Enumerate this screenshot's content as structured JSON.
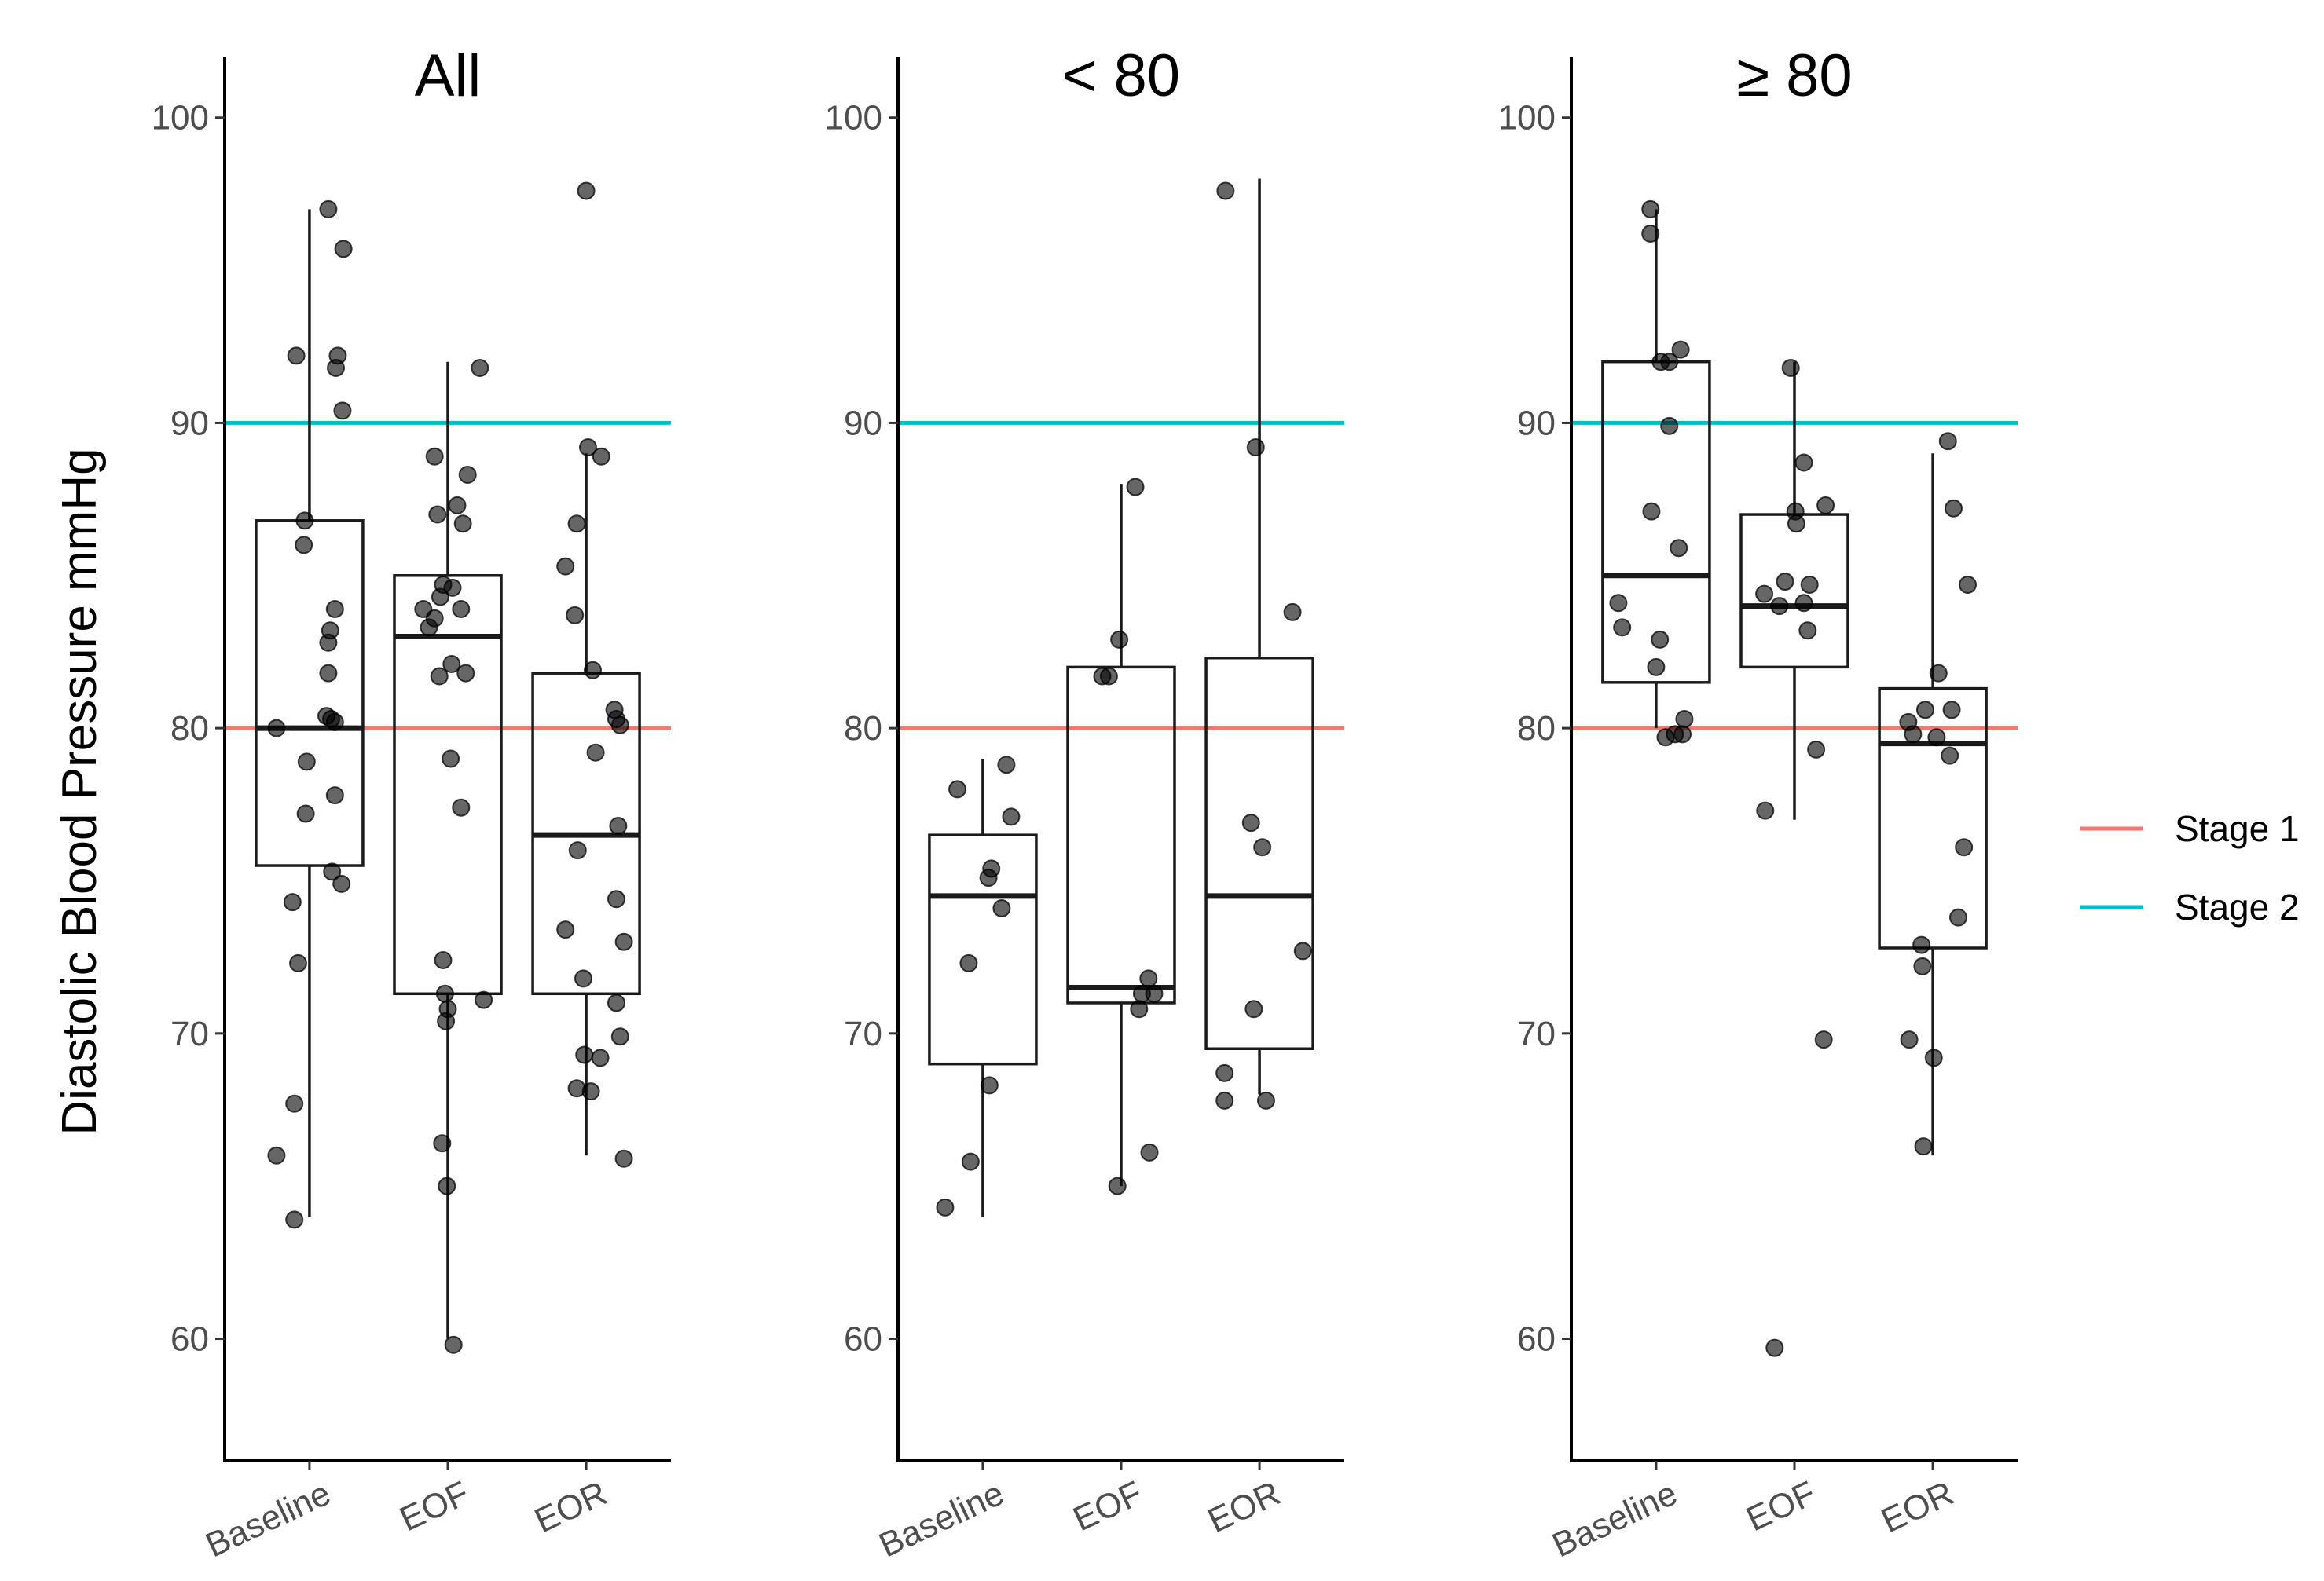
{
  "chart_data": {
    "type": "box",
    "ylabel": "Diastolic Blood Pressure mmHg",
    "ylim": [
      56,
      102
    ],
    "yticks": [
      60,
      70,
      80,
      90,
      100
    ],
    "categories": [
      "Baseline",
      "EOF",
      "EOR"
    ],
    "reference_lines": [
      {
        "name": "Stage 1",
        "value": 80,
        "color": "#f8766d"
      },
      {
        "name": "Stage 2",
        "value": 90,
        "color": "#00bfc4"
      }
    ],
    "legend": {
      "position": "right",
      "items": [
        "Stage 1",
        "Stage 2"
      ]
    },
    "panels": [
      {
        "title": "All",
        "boxes": [
          {
            "category": "Baseline",
            "min": 64,
            "q1": 75.5,
            "median": 80,
            "q3": 86.8,
            "max": 97
          },
          {
            "category": "EOF",
            "min": 60,
            "q1": 71.3,
            "median": 83,
            "q3": 85,
            "max": 92
          },
          {
            "category": "EOR",
            "min": 66,
            "q1": 71.3,
            "median": 76.5,
            "q3": 81.8,
            "max": 89
          }
        ],
        "points": [
          {
            "category": "Baseline",
            "jitter": -0.35,
            "y": 80
          },
          {
            "category": "Baseline",
            "jitter": -0.35,
            "y": 66
          },
          {
            "category": "Baseline",
            "jitter": -0.18,
            "y": 74.3
          },
          {
            "category": "Baseline",
            "jitter": -0.14,
            "y": 92.2
          },
          {
            "category": "Baseline",
            "jitter": -0.12,
            "y": 72.3
          },
          {
            "category": "Baseline",
            "jitter": -0.16,
            "y": 67.7
          },
          {
            "category": "Baseline",
            "jitter": -0.16,
            "y": 63.9
          },
          {
            "category": "Baseline",
            "jitter": -0.05,
            "y": 86.8
          },
          {
            "category": "Baseline",
            "jitter": -0.06,
            "y": 86
          },
          {
            "category": "Baseline",
            "jitter": -0.03,
            "y": 78.9
          },
          {
            "category": "Baseline",
            "jitter": -0.04,
            "y": 77.2
          },
          {
            "category": "Baseline",
            "jitter": 0.2,
            "y": 97
          },
          {
            "category": "Baseline",
            "jitter": 0.2,
            "y": 82.8
          },
          {
            "category": "Baseline",
            "jitter": 0.22,
            "y": 83.2
          },
          {
            "category": "Baseline",
            "jitter": 0.27,
            "y": 83.9
          },
          {
            "category": "Baseline",
            "jitter": 0.2,
            "y": 81.8
          },
          {
            "category": "Baseline",
            "jitter": 0.18,
            "y": 80.4
          },
          {
            "category": "Baseline",
            "jitter": 0.23,
            "y": 80.3
          },
          {
            "category": "Baseline",
            "jitter": 0.27,
            "y": 80.2
          },
          {
            "category": "Baseline",
            "jitter": 0.27,
            "y": 77.8
          },
          {
            "category": "Baseline",
            "jitter": 0.24,
            "y": 75.3
          },
          {
            "category": "Baseline",
            "jitter": 0.34,
            "y": 74.9
          },
          {
            "category": "Baseline",
            "jitter": 0.28,
            "y": 91.8
          },
          {
            "category": "Baseline",
            "jitter": 0.3,
            "y": 92.2
          },
          {
            "category": "Baseline",
            "jitter": 0.35,
            "y": 90.4
          },
          {
            "category": "Baseline",
            "jitter": 0.36,
            "y": 95.7
          },
          {
            "category": "EOF",
            "jitter": -0.14,
            "y": 88.9
          },
          {
            "category": "EOF",
            "jitter": -0.11,
            "y": 87
          },
          {
            "category": "EOF",
            "jitter": -0.26,
            "y": 83.9
          },
          {
            "category": "EOF",
            "jitter": -0.2,
            "y": 83.3
          },
          {
            "category": "EOF",
            "jitter": -0.14,
            "y": 83.6
          },
          {
            "category": "EOF",
            "jitter": -0.08,
            "y": 84.3
          },
          {
            "category": "EOF",
            "jitter": -0.05,
            "y": 84.7
          },
          {
            "category": "EOF",
            "jitter": -0.09,
            "y": 81.7
          },
          {
            "category": "EOF",
            "jitter": 0.04,
            "y": 82.1
          },
          {
            "category": "EOF",
            "jitter": 0.05,
            "y": 84.6
          },
          {
            "category": "EOF",
            "jitter": 0.14,
            "y": 83.9
          },
          {
            "category": "EOF",
            "jitter": 0.1,
            "y": 87.3
          },
          {
            "category": "EOF",
            "jitter": 0.16,
            "y": 86.7
          },
          {
            "category": "EOF",
            "jitter": 0.21,
            "y": 88.3
          },
          {
            "category": "EOF",
            "jitter": 0.34,
            "y": 91.8
          },
          {
            "category": "EOF",
            "jitter": 0.19,
            "y": 81.8
          },
          {
            "category": "EOF",
            "jitter": 0.03,
            "y": 79
          },
          {
            "category": "EOF",
            "jitter": 0.14,
            "y": 77.4
          },
          {
            "category": "EOF",
            "jitter": -0.05,
            "y": 72.4
          },
          {
            "category": "EOF",
            "jitter": -0.03,
            "y": 71.3
          },
          {
            "category": "EOF",
            "jitter": 0.0,
            "y": 70.8
          },
          {
            "category": "EOF",
            "jitter": -0.02,
            "y": 70.4
          },
          {
            "category": "EOF",
            "jitter": -0.06,
            "y": 66.4
          },
          {
            "category": "EOF",
            "jitter": -0.01,
            "y": 65
          },
          {
            "category": "EOF",
            "jitter": 0.06,
            "y": 59.8
          },
          {
            "category": "EOF",
            "jitter": 0.38,
            "y": 71.1
          },
          {
            "category": "EOR",
            "jitter": 0.0,
            "y": 97.6
          },
          {
            "category": "EOR",
            "jitter": -0.1,
            "y": 86.7
          },
          {
            "category": "EOR",
            "jitter": 0.02,
            "y": 89.2
          },
          {
            "category": "EOR",
            "jitter": 0.16,
            "y": 88.9
          },
          {
            "category": "EOR",
            "jitter": -0.22,
            "y": 85.3
          },
          {
            "category": "EOR",
            "jitter": -0.12,
            "y": 83.7
          },
          {
            "category": "EOR",
            "jitter": 0.07,
            "y": 81.9
          },
          {
            "category": "EOR",
            "jitter": 0.1,
            "y": 79.2
          },
          {
            "category": "EOR",
            "jitter": -0.09,
            "y": 76
          },
          {
            "category": "EOR",
            "jitter": 0.3,
            "y": 80.6
          },
          {
            "category": "EOR",
            "jitter": 0.32,
            "y": 80.3
          },
          {
            "category": "EOR",
            "jitter": 0.36,
            "y": 80.1
          },
          {
            "category": "EOR",
            "jitter": 0.34,
            "y": 76.8
          },
          {
            "category": "EOR",
            "jitter": 0.32,
            "y": 74.4
          },
          {
            "category": "EOR",
            "jitter": 0.4,
            "y": 73
          },
          {
            "category": "EOR",
            "jitter": -0.22,
            "y": 73.4
          },
          {
            "category": "EOR",
            "jitter": -0.03,
            "y": 71.8
          },
          {
            "category": "EOR",
            "jitter": 0.32,
            "y": 71
          },
          {
            "category": "EOR",
            "jitter": 0.36,
            "y": 69.9
          },
          {
            "category": "EOR",
            "jitter": -0.02,
            "y": 69.3
          },
          {
            "category": "EOR",
            "jitter": 0.15,
            "y": 69.2
          },
          {
            "category": "EOR",
            "jitter": -0.1,
            "y": 68.2
          },
          {
            "category": "EOR",
            "jitter": 0.05,
            "y": 68.1
          },
          {
            "category": "EOR",
            "jitter": 0.4,
            "y": 65.9
          }
        ]
      },
      {
        "title": "< 80",
        "boxes": [
          {
            "category": "Baseline",
            "min": 64,
            "q1": 69,
            "median": 74.5,
            "q3": 76.5,
            "max": 79
          },
          {
            "category": "EOF",
            "min": 65,
            "q1": 71,
            "median": 71.5,
            "q3": 82,
            "max": 88
          },
          {
            "category": "EOR",
            "min": 68,
            "q1": 69.5,
            "median": 74.5,
            "q3": 82.3,
            "max": 98
          }
        ],
        "points": [
          {
            "category": "Baseline",
            "jitter": -0.4,
            "y": 64.3
          },
          {
            "category": "Baseline",
            "jitter": -0.27,
            "y": 78
          },
          {
            "category": "Baseline",
            "jitter": -0.15,
            "y": 72.3
          },
          {
            "category": "Baseline",
            "jitter": -0.13,
            "y": 65.8
          },
          {
            "category": "Baseline",
            "jitter": 0.06,
            "y": 75.1
          },
          {
            "category": "Baseline",
            "jitter": 0.09,
            "y": 75.4
          },
          {
            "category": "Baseline",
            "jitter": 0.07,
            "y": 68.3
          },
          {
            "category": "Baseline",
            "jitter": 0.2,
            "y": 74.1
          },
          {
            "category": "Baseline",
            "jitter": 0.25,
            "y": 78.8
          },
          {
            "category": "Baseline",
            "jitter": 0.3,
            "y": 77.1
          },
          {
            "category": "EOF",
            "jitter": -0.2,
            "y": 81.7
          },
          {
            "category": "EOF",
            "jitter": -0.13,
            "y": 81.7
          },
          {
            "category": "EOF",
            "jitter": -0.02,
            "y": 82.9
          },
          {
            "category": "EOF",
            "jitter": 0.15,
            "y": 87.9
          },
          {
            "category": "EOF",
            "jitter": 0.22,
            "y": 71.3
          },
          {
            "category": "EOF",
            "jitter": 0.29,
            "y": 71.8
          },
          {
            "category": "EOF",
            "jitter": 0.35,
            "y": 71.3
          },
          {
            "category": "EOF",
            "jitter": 0.19,
            "y": 70.8
          },
          {
            "category": "EOF",
            "jitter": -0.04,
            "y": 65
          },
          {
            "category": "EOF",
            "jitter": 0.3,
            "y": 66.1
          },
          {
            "category": "EOR",
            "jitter": -0.36,
            "y": 97.6
          },
          {
            "category": "EOR",
            "jitter": -0.04,
            "y": 89.2
          },
          {
            "category": "EOR",
            "jitter": 0.35,
            "y": 83.8
          },
          {
            "category": "EOR",
            "jitter": -0.09,
            "y": 76.9
          },
          {
            "category": "EOR",
            "jitter": 0.03,
            "y": 76.1
          },
          {
            "category": "EOR",
            "jitter": 0.46,
            "y": 72.7
          },
          {
            "category": "EOR",
            "jitter": -0.06,
            "y": 70.8
          },
          {
            "category": "EOR",
            "jitter": -0.37,
            "y": 68.7
          },
          {
            "category": "EOR",
            "jitter": -0.37,
            "y": 67.8
          },
          {
            "category": "EOR",
            "jitter": 0.07,
            "y": 67.8
          }
        ]
      },
      {
        "title": "≥ 80",
        "boxes": [
          {
            "category": "Baseline",
            "min": 80,
            "q1": 81.5,
            "median": 85,
            "q3": 92,
            "max": 97
          },
          {
            "category": "EOF",
            "min": 77,
            "q1": 82,
            "median": 84,
            "q3": 87,
            "max": 92
          },
          {
            "category": "EOR",
            "min": 66,
            "q1": 72.8,
            "median": 79.5,
            "q3": 81.3,
            "max": 89
          }
        ],
        "points": [
          {
            "category": "Baseline",
            "jitter": -0.06,
            "y": 97
          },
          {
            "category": "Baseline",
            "jitter": -0.06,
            "y": 96.2
          },
          {
            "category": "Baseline",
            "jitter": 0.05,
            "y": 92
          },
          {
            "category": "Baseline",
            "jitter": 0.14,
            "y": 92
          },
          {
            "category": "Baseline",
            "jitter": 0.26,
            "y": 92.4
          },
          {
            "category": "Baseline",
            "jitter": 0.14,
            "y": 89.9
          },
          {
            "category": "Baseline",
            "jitter": -0.05,
            "y": 87.1
          },
          {
            "category": "Baseline",
            "jitter": 0.24,
            "y": 85.9
          },
          {
            "category": "Baseline",
            "jitter": -0.4,
            "y": 84.1
          },
          {
            "category": "Baseline",
            "jitter": -0.36,
            "y": 83.3
          },
          {
            "category": "Baseline",
            "jitter": 0.04,
            "y": 82.9
          },
          {
            "category": "Baseline",
            "jitter": 0.0,
            "y": 82
          },
          {
            "category": "Baseline",
            "jitter": 0.1,
            "y": 79.7
          },
          {
            "category": "Baseline",
            "jitter": 0.2,
            "y": 79.8
          },
          {
            "category": "Baseline",
            "jitter": 0.28,
            "y": 79.8
          },
          {
            "category": "Baseline",
            "jitter": 0.3,
            "y": 80.3
          },
          {
            "category": "EOF",
            "jitter": -0.32,
            "y": 84.4
          },
          {
            "category": "EOF",
            "jitter": -0.1,
            "y": 84.8
          },
          {
            "category": "EOF",
            "jitter": -0.16,
            "y": 84
          },
          {
            "category": "EOF",
            "jitter": 0.01,
            "y": 87.1
          },
          {
            "category": "EOF",
            "jitter": 0.02,
            "y": 86.7
          },
          {
            "category": "EOF",
            "jitter": 0.1,
            "y": 88.7
          },
          {
            "category": "EOF",
            "jitter": 0.1,
            "y": 84.1
          },
          {
            "category": "EOF",
            "jitter": 0.16,
            "y": 84.7
          },
          {
            "category": "EOF",
            "jitter": 0.14,
            "y": 83.2
          },
          {
            "category": "EOF",
            "jitter": 0.33,
            "y": 87.3
          },
          {
            "category": "EOF",
            "jitter": -0.04,
            "y": 91.8
          },
          {
            "category": "EOF",
            "jitter": -0.31,
            "y": 77.3
          },
          {
            "category": "EOF",
            "jitter": 0.23,
            "y": 79.3
          },
          {
            "category": "EOF",
            "jitter": 0.31,
            "y": 69.8
          },
          {
            "category": "EOF",
            "jitter": -0.21,
            "y": 59.7
          },
          {
            "category": "EOR",
            "jitter": -0.26,
            "y": 80.2
          },
          {
            "category": "EOR",
            "jitter": -0.21,
            "y": 79.8
          },
          {
            "category": "EOR",
            "jitter": -0.08,
            "y": 80.6
          },
          {
            "category": "EOR",
            "jitter": 0.06,
            "y": 81.8
          },
          {
            "category": "EOR",
            "jitter": 0.04,
            "y": 79.7
          },
          {
            "category": "EOR",
            "jitter": 0.18,
            "y": 79.1
          },
          {
            "category": "EOR",
            "jitter": 0.2,
            "y": 80.6
          },
          {
            "category": "EOR",
            "jitter": 0.16,
            "y": 89.4
          },
          {
            "category": "EOR",
            "jitter": 0.22,
            "y": 87.2
          },
          {
            "category": "EOR",
            "jitter": 0.37,
            "y": 84.7
          },
          {
            "category": "EOR",
            "jitter": 0.33,
            "y": 76.1
          },
          {
            "category": "EOR",
            "jitter": 0.27,
            "y": 73.8
          },
          {
            "category": "EOR",
            "jitter": -0.12,
            "y": 72.9
          },
          {
            "category": "EOR",
            "jitter": -0.11,
            "y": 72.2
          },
          {
            "category": "EOR",
            "jitter": -0.25,
            "y": 69.8
          },
          {
            "category": "EOR",
            "jitter": 0.01,
            "y": 69.2
          },
          {
            "category": "EOR",
            "jitter": -0.1,
            "y": 66.3
          }
        ]
      }
    ]
  }
}
